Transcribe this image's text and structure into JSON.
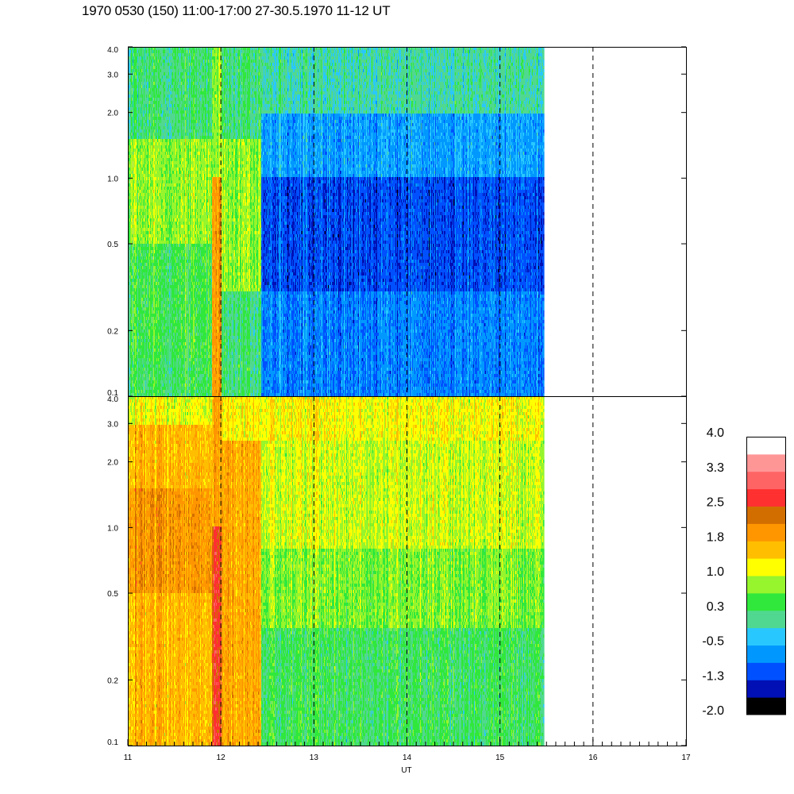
{
  "title": "1970 0530 (150) 11:00-17:00 27-30.5.1970  11-12 UT",
  "chart_data": [
    {
      "type": "heatmap",
      "panel": "upper",
      "xlabel": "",
      "ylabel": "",
      "x_axis_scale": "linear",
      "y_axis_scale": "log",
      "xlim": [
        11,
        17
      ],
      "ylim": [
        0.1,
        4.0
      ],
      "x_ticks": [
        "11",
        "12",
        "13",
        "14",
        "15",
        "16",
        "17"
      ],
      "y_ticks": [
        "0.1",
        "0.2",
        "0.5",
        "1.0",
        "2.0",
        "3.0",
        "4.0"
      ],
      "data_end_x": 15.47,
      "dashed_vertical_lines_at": [
        12,
        13,
        14,
        15,
        16
      ],
      "segments": [
        {
          "x": [
            11.0,
            11.9
          ],
          "level_by_y": [
            {
              "y": [
                0.1,
                0.15
              ],
              "value": 0.3
            },
            {
              "y": [
                0.15,
                0.5
              ],
              "value": 0.4
            },
            {
              "y": [
                0.5,
                1.5
              ],
              "value": 0.8
            },
            {
              "y": [
                1.5,
                4.0
              ],
              "value": 0.2
            }
          ]
        },
        {
          "x": [
            11.9,
            12.0
          ],
          "level_by_y": [
            {
              "y": [
                0.1,
                1.0
              ],
              "value": 1.9
            },
            {
              "y": [
                1.0,
                4.0
              ],
              "value": 0.8
            }
          ]
        },
        {
          "x": [
            12.0,
            12.43
          ],
          "level_by_y": [
            {
              "y": [
                0.1,
                0.3
              ],
              "value": 0.2
            },
            {
              "y": [
                0.3,
                1.5
              ],
              "value": 0.8
            },
            {
              "y": [
                1.5,
                4.0
              ],
              "value": 0.2
            }
          ]
        },
        {
          "x": [
            12.43,
            15.47
          ],
          "level_by_y": [
            {
              "y": [
                0.1,
                0.3
              ],
              "value": -0.8
            },
            {
              "y": [
                0.3,
                1.0
              ],
              "value": -1.1
            },
            {
              "y": [
                1.0,
                2.0
              ],
              "value": -0.6
            },
            {
              "y": [
                2.0,
                4.0
              ],
              "value": 0.0
            }
          ]
        }
      ]
    },
    {
      "type": "heatmap",
      "panel": "lower",
      "xlabel": "UT",
      "ylabel": "",
      "x_axis_scale": "linear",
      "y_axis_scale": "log",
      "xlim": [
        11,
        17
      ],
      "ylim": [
        0.1,
        4.0
      ],
      "x_ticks": [
        "11",
        "12",
        "13",
        "14",
        "15",
        "16",
        "17"
      ],
      "y_ticks": [
        "0.1",
        "0.2",
        "0.5",
        "1.0",
        "2.0",
        "3.0",
        "4.0"
      ],
      "data_end_x": 15.47,
      "dashed_vertical_lines_at": [
        12,
        13,
        14,
        15,
        16
      ],
      "segments": [
        {
          "x": [
            11.0,
            11.9
          ],
          "level_by_y": [
            {
              "y": [
                0.1,
                0.5
              ],
              "value": 1.6
            },
            {
              "y": [
                0.5,
                1.5
              ],
              "value": 1.9
            },
            {
              "y": [
                1.5,
                3.0
              ],
              "value": 1.6
            },
            {
              "y": [
                3.0,
                4.0
              ],
              "value": 1.1
            }
          ]
        },
        {
          "x": [
            11.9,
            12.0
          ],
          "level_by_y": [
            {
              "y": [
                0.1,
                1.0
              ],
              "value": 2.6
            },
            {
              "y": [
                1.0,
                4.0
              ],
              "value": 1.8
            }
          ]
        },
        {
          "x": [
            12.0,
            12.43
          ],
          "level_by_y": [
            {
              "y": [
                0.1,
                2.5
              ],
              "value": 1.7
            },
            {
              "y": [
                2.5,
                4.0
              ],
              "value": 1.2
            }
          ]
        },
        {
          "x": [
            12.43,
            15.47
          ],
          "level_by_y": [
            {
              "y": [
                0.1,
                0.35
              ],
              "value": 0.3
            },
            {
              "y": [
                0.35,
                0.8
              ],
              "value": 0.7
            },
            {
              "y": [
                0.8,
                2.5
              ],
              "value": 1.0
            },
            {
              "y": [
                2.5,
                4.0
              ],
              "value": 1.2
            }
          ]
        }
      ]
    }
  ],
  "colorbar": {
    "labels": [
      "4.0",
      "3.3",
      "2.5",
      "1.8",
      "1.0",
      "0.3",
      "-0.5",
      "-1.3",
      "-2.0"
    ],
    "range": [
      -2.0,
      4.0
    ],
    "colors": [
      "#000000",
      "#0010b4",
      "#0050ff",
      "#0098ff",
      "#28c8ff",
      "#50d890",
      "#30e83c",
      "#96f52c",
      "#ffff00",
      "#ffbe00",
      "#ff9600",
      "#d26e00",
      "#ff3030",
      "#ff6464",
      "#ff9696",
      "#ffffff"
    ]
  }
}
